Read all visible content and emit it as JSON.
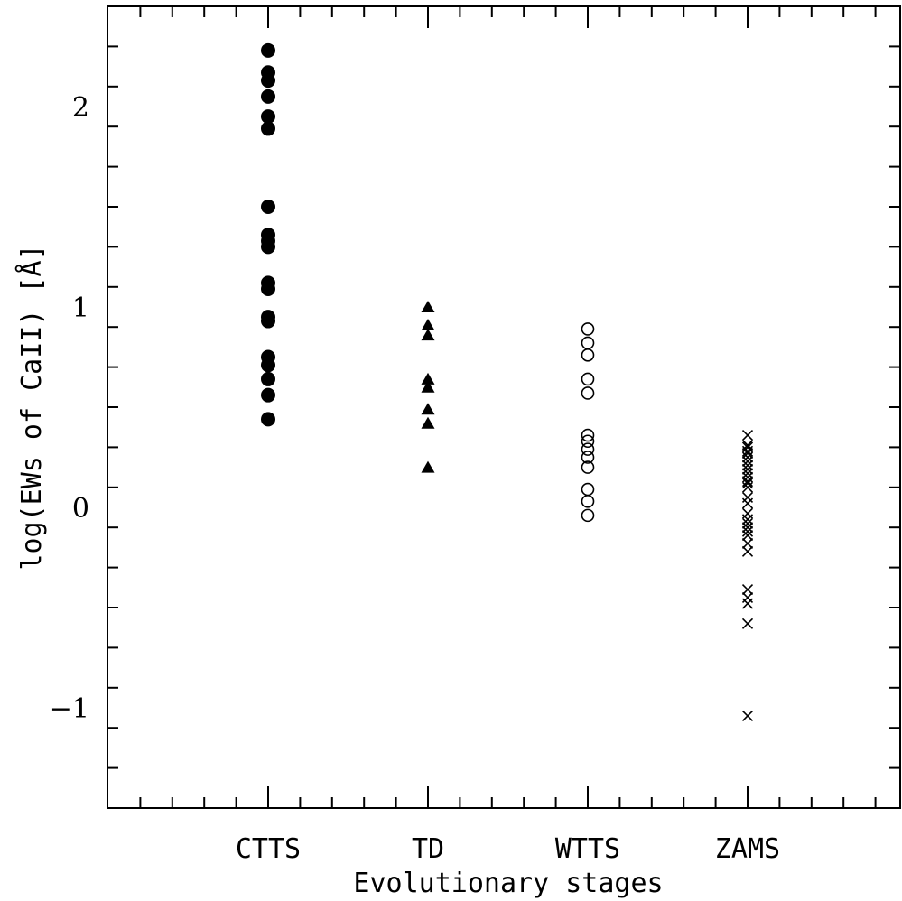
{
  "chart_data": {
    "type": "scatter",
    "xlabel": "Evolutionary stages",
    "ylabel": "log(EWs of CaII) [Å]",
    "categories": [
      "CTTS",
      "TD",
      "WTTS",
      "ZAMS"
    ],
    "ylim": [
      -1.5,
      2.5
    ],
    "yticks": [
      -1,
      0,
      1,
      2
    ],
    "ytick_labels": [
      "−1",
      "0",
      "1",
      "2"
    ],
    "grid": false,
    "series": [
      {
        "category": "CTTS",
        "marker": "filled-circle",
        "values": [
          2.28,
          2.17,
          2.13,
          2.05,
          1.95,
          1.89,
          1.5,
          1.36,
          1.33,
          1.3,
          1.12,
          1.09,
          0.95,
          0.93,
          0.75,
          0.71,
          0.64,
          0.56,
          0.44
        ]
      },
      {
        "category": "TD",
        "marker": "filled-triangle",
        "values": [
          1.0,
          0.91,
          0.86,
          0.64,
          0.6,
          0.49,
          0.42,
          0.2
        ]
      },
      {
        "category": "WTTS",
        "marker": "open-circle",
        "values": [
          0.89,
          0.82,
          0.76,
          0.64,
          0.57,
          0.36,
          0.33,
          0.29,
          0.25,
          0.2,
          0.09,
          0.03,
          -0.04
        ]
      },
      {
        "category": "ZAMS",
        "marker": "cross",
        "values": [
          0.36,
          0.31,
          0.3,
          0.28,
          0.27,
          0.25,
          0.23,
          0.21,
          0.19,
          0.17,
          0.15,
          0.13,
          0.12,
          0.1,
          0.05,
          0.02,
          -0.03,
          -0.06,
          -0.08,
          -0.1,
          -0.12,
          -0.14,
          -0.18,
          -0.22,
          -0.41,
          -0.45,
          -0.48,
          -0.58,
          -1.04
        ]
      }
    ]
  }
}
